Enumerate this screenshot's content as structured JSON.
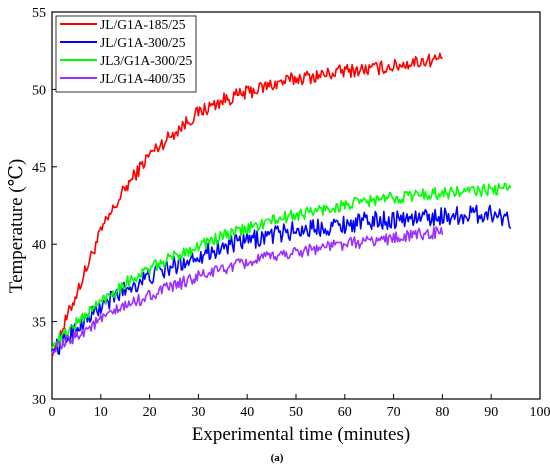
{
  "chart_data": {
    "type": "line",
    "xlabel": "Experimental time (minutes)",
    "ylabel": "Temperature (℃)",
    "caption": "(a)",
    "xlim": [
      0,
      100
    ],
    "ylim": [
      30,
      55
    ],
    "xticks": [
      0,
      10,
      20,
      30,
      40,
      50,
      60,
      70,
      80,
      90,
      100
    ],
    "yticks": [
      30,
      35,
      40,
      45,
      50,
      55
    ],
    "legend": "top-left",
    "grid": false,
    "series": [
      {
        "name": "JL/G1A-185/25",
        "color": "#ff0000",
        "x": [
          0,
          5,
          10,
          15,
          20,
          25,
          30,
          35,
          40,
          45,
          50,
          55,
          60,
          65,
          70,
          75,
          80
        ],
        "y": [
          32.8,
          36.8,
          40.8,
          43.6,
          45.8,
          47.2,
          48.5,
          49.3,
          49.8,
          50.3,
          50.7,
          50.9,
          51.2,
          51.3,
          51.5,
          51.8,
          52.0
        ],
        "noise": 0.45
      },
      {
        "name": "JL/G1A-300/25",
        "color": "#0000ff",
        "x": [
          0,
          5,
          10,
          15,
          20,
          25,
          30,
          35,
          40,
          45,
          50,
          55,
          60,
          65,
          70,
          75,
          80,
          85,
          90,
          94
        ],
        "y": [
          33.0,
          34.6,
          35.9,
          37.1,
          37.9,
          38.6,
          39.3,
          39.8,
          40.2,
          40.6,
          40.9,
          41.1,
          41.3,
          41.5,
          41.6,
          41.7,
          41.8,
          41.9,
          42.0,
          41.6
        ],
        "noise": 0.6
      },
      {
        "name": "JL3/G1A-300/25",
        "color": "#00ff00",
        "x": [
          0,
          5,
          10,
          15,
          20,
          25,
          30,
          35,
          40,
          45,
          50,
          55,
          60,
          65,
          70,
          75,
          80,
          85,
          90,
          94
        ],
        "y": [
          33.4,
          34.9,
          36.3,
          37.5,
          38.4,
          39.2,
          39.9,
          40.5,
          41.0,
          41.5,
          41.9,
          42.2,
          42.5,
          42.8,
          43.0,
          43.2,
          43.3,
          43.4,
          43.5,
          43.6
        ],
        "noise": 0.4
      },
      {
        "name": "JL/G1A-400/35",
        "color": "#9b30ff",
        "x": [
          0,
          5,
          10,
          15,
          20,
          25,
          30,
          35,
          40,
          45,
          50,
          55,
          60,
          65,
          70,
          75,
          80
        ],
        "y": [
          33.0,
          34.1,
          35.1,
          36.0,
          36.7,
          37.3,
          37.9,
          38.4,
          38.8,
          39.2,
          39.5,
          39.8,
          40.0,
          40.2,
          40.4,
          40.6,
          40.8
        ],
        "noise": 0.4
      }
    ]
  }
}
